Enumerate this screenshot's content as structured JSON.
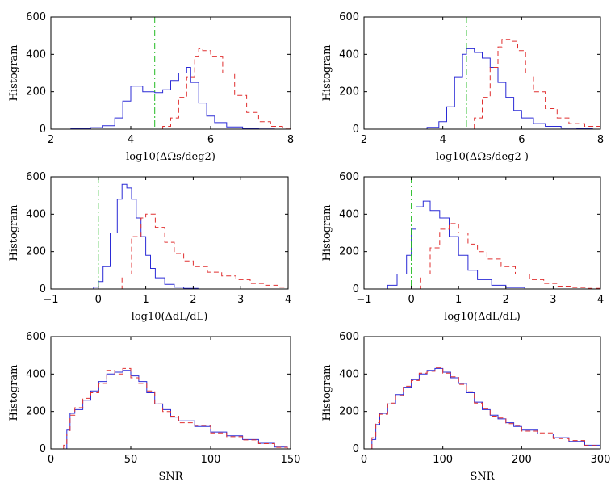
{
  "chart_data": [
    {
      "type": "histogram",
      "panel": "top-left",
      "xlabel": "log10(ΔΩs/deg2)",
      "ylabel": "Histogram",
      "xlim": [
        2,
        8
      ],
      "ylim": [
        0,
        600
      ],
      "xticks": [
        "2",
        "4",
        "6",
        "8"
      ],
      "yticks": [
        "0",
        "200",
        "400",
        "600"
      ],
      "vline": {
        "x": 4.6,
        "color": "#22bb22"
      },
      "series": [
        {
          "name": "solid",
          "color": "#2b2bd6",
          "style": "solid",
          "x": [
            2,
            2.5,
            3,
            3.3,
            3.6,
            3.8,
            4.0,
            4.3,
            4.6,
            4.8,
            5.0,
            5.2,
            5.4,
            5.5,
            5.7,
            5.9,
            6.1,
            6.4,
            6.8,
            7.2,
            7.6,
            8.0
          ],
          "y": [
            0,
            3,
            8,
            18,
            60,
            150,
            230,
            200,
            195,
            210,
            260,
            300,
            330,
            250,
            140,
            70,
            35,
            12,
            4,
            1,
            0,
            0
          ]
        },
        {
          "name": "dashed",
          "color": "#e03030",
          "style": "dashed",
          "x": [
            4.6,
            4.8,
            5.0,
            5.2,
            5.4,
            5.6,
            5.7,
            5.8,
            6.0,
            6.3,
            6.6,
            6.9,
            7.2,
            7.5,
            7.8,
            8.0
          ],
          "y": [
            0,
            15,
            60,
            170,
            280,
            390,
            430,
            420,
            390,
            300,
            180,
            90,
            40,
            15,
            5,
            2
          ]
        }
      ]
    },
    {
      "type": "histogram",
      "panel": "top-right",
      "xlabel": "log10(ΔΩs/deg2 )",
      "ylabel": "Histogram",
      "xlim": [
        2,
        8
      ],
      "ylim": [
        0,
        600
      ],
      "xticks": [
        "2",
        "4",
        "6",
        "8"
      ],
      "yticks": [
        "0",
        "200",
        "400",
        "600"
      ],
      "vline": {
        "x": 4.6,
        "color": "#22bb22"
      },
      "series": [
        {
          "name": "solid",
          "color": "#2b2bd6",
          "style": "solid",
          "x": [
            3.2,
            3.6,
            3.9,
            4.1,
            4.3,
            4.5,
            4.6,
            4.8,
            5.0,
            5.2,
            5.4,
            5.6,
            5.8,
            6.0,
            6.3,
            6.6,
            7.0,
            7.4,
            7.8
          ],
          "y": [
            0,
            10,
            40,
            120,
            280,
            400,
            430,
            410,
            380,
            330,
            250,
            170,
            100,
            60,
            30,
            15,
            5,
            2,
            0
          ]
        },
        {
          "name": "dashed",
          "color": "#e03030",
          "style": "dashed",
          "x": [
            4.6,
            4.8,
            5.0,
            5.2,
            5.4,
            5.5,
            5.7,
            5.9,
            6.1,
            6.3,
            6.6,
            6.9,
            7.2,
            7.6,
            8.0
          ],
          "y": [
            0,
            60,
            170,
            330,
            440,
            480,
            470,
            420,
            300,
            200,
            110,
            60,
            30,
            15,
            10
          ]
        }
      ]
    },
    {
      "type": "histogram",
      "panel": "middle-left",
      "xlabel": "log10(ΔdL/dL)",
      "ylabel": "Histogram",
      "xlim": [
        -1,
        4
      ],
      "ylim": [
        0,
        600
      ],
      "xticks": [
        "−1",
        "0",
        "1",
        "2",
        "3",
        "4"
      ],
      "yticks": [
        "0",
        "200",
        "400",
        "600"
      ],
      "vline": {
        "x": 0.0,
        "color": "#22bb22"
      },
      "series": [
        {
          "name": "solid",
          "color": "#2b2bd6",
          "style": "solid",
          "x": [
            -0.3,
            -0.1,
            0.0,
            0.1,
            0.25,
            0.4,
            0.5,
            0.6,
            0.7,
            0.8,
            0.9,
            1.0,
            1.1,
            1.2,
            1.4,
            1.6,
            1.8,
            2.1
          ],
          "y": [
            0,
            10,
            40,
            120,
            300,
            480,
            560,
            540,
            480,
            380,
            280,
            180,
            110,
            60,
            25,
            10,
            3,
            0
          ]
        },
        {
          "name": "dashed",
          "color": "#e03030",
          "style": "dashed",
          "x": [
            0.3,
            0.5,
            0.7,
            0.9,
            1.0,
            1.2,
            1.4,
            1.6,
            1.8,
            2.0,
            2.3,
            2.6,
            2.9,
            3.2,
            3.5,
            3.8,
            4.0
          ],
          "y": [
            0,
            80,
            280,
            380,
            400,
            330,
            250,
            190,
            150,
            120,
            90,
            70,
            50,
            30,
            20,
            10,
            5
          ]
        }
      ]
    },
    {
      "type": "histogram",
      "panel": "middle-right",
      "xlabel": "log10(ΔdL/dL)",
      "ylabel": "Histogram",
      "xlim": [
        -1,
        4
      ],
      "ylim": [
        0,
        600
      ],
      "xticks": [
        "−1",
        "0",
        "1",
        "2",
        "3",
        "4"
      ],
      "yticks": [
        "0",
        "200",
        "400",
        "600"
      ],
      "vline": {
        "x": 0.0,
        "color": "#22bb22"
      },
      "series": [
        {
          "name": "solid",
          "color": "#2b2bd6",
          "style": "solid",
          "x": [
            -0.7,
            -0.5,
            -0.3,
            -0.1,
            0.0,
            0.1,
            0.25,
            0.4,
            0.6,
            0.8,
            1.0,
            1.2,
            1.4,
            1.7,
            2.0,
            2.4
          ],
          "y": [
            0,
            20,
            80,
            180,
            320,
            440,
            470,
            420,
            380,
            280,
            180,
            100,
            50,
            20,
            8,
            0
          ]
        },
        {
          "name": "dashed",
          "color": "#e03030",
          "style": "dashed",
          "x": [
            0.0,
            0.2,
            0.4,
            0.6,
            0.8,
            1.0,
            1.2,
            1.4,
            1.6,
            1.9,
            2.2,
            2.5,
            2.8,
            3.1,
            3.4,
            3.7,
            4.0
          ],
          "y": [
            0,
            80,
            220,
            320,
            350,
            300,
            240,
            200,
            160,
            120,
            80,
            50,
            30,
            15,
            8,
            3,
            0
          ]
        }
      ]
    },
    {
      "type": "histogram",
      "panel": "bottom-left",
      "xlabel": "SNR",
      "ylabel": "Histogram",
      "xlim": [
        0,
        150
      ],
      "ylim": [
        0,
        600
      ],
      "xticks": [
        "0",
        "50",
        "100",
        "150"
      ],
      "yticks": [
        "0",
        "200",
        "400",
        "600"
      ],
      "series": [
        {
          "name": "solid",
          "color": "#2b2bd6",
          "style": "solid",
          "x": [
            8,
            10,
            12,
            15,
            20,
            25,
            30,
            35,
            40,
            45,
            50,
            55,
            60,
            65,
            70,
            75,
            80,
            90,
            100,
            110,
            120,
            130,
            140,
            148
          ],
          "y": [
            0,
            100,
            190,
            210,
            260,
            310,
            360,
            400,
            410,
            420,
            390,
            360,
            300,
            240,
            210,
            170,
            150,
            120,
            90,
            70,
            50,
            30,
            10,
            0
          ]
        },
        {
          "name": "dashed",
          "color": "#e03030",
          "style": "dashed",
          "x": [
            8,
            10,
            12,
            15,
            20,
            25,
            30,
            35,
            40,
            45,
            50,
            55,
            60,
            65,
            70,
            75,
            80,
            90,
            100,
            110,
            120,
            130,
            140,
            148
          ],
          "y": [
            20,
            80,
            180,
            220,
            270,
            300,
            350,
            420,
            400,
            430,
            380,
            350,
            310,
            240,
            200,
            175,
            140,
            125,
            85,
            65,
            48,
            28,
            8,
            0
          ]
        }
      ]
    },
    {
      "type": "histogram",
      "panel": "bottom-right",
      "xlabel": "SNR",
      "ylabel": "Histogram",
      "xlim": [
        0,
        300
      ],
      "ylim": [
        0,
        600
      ],
      "xticks": [
        "0",
        "100",
        "200",
        "300"
      ],
      "yticks": [
        "0",
        "200",
        "400",
        "600"
      ],
      "series": [
        {
          "name": "solid",
          "color": "#2b2bd6",
          "style": "solid",
          "x": [
            10,
            15,
            20,
            30,
            40,
            50,
            60,
            70,
            80,
            90,
            100,
            110,
            120,
            130,
            140,
            150,
            160,
            170,
            180,
            190,
            200,
            220,
            240,
            260,
            280,
            300
          ],
          "y": [
            50,
            130,
            190,
            240,
            290,
            330,
            370,
            400,
            420,
            430,
            410,
            380,
            350,
            300,
            250,
            210,
            180,
            160,
            140,
            120,
            100,
            80,
            60,
            40,
            20,
            10
          ]
        },
        {
          "name": "dashed",
          "color": "#e03030",
          "style": "dashed",
          "x": [
            10,
            15,
            20,
            30,
            40,
            50,
            60,
            70,
            80,
            90,
            100,
            110,
            120,
            130,
            140,
            150,
            160,
            170,
            180,
            190,
            200,
            220,
            240,
            260,
            280,
            300
          ],
          "y": [
            60,
            140,
            185,
            245,
            285,
            335,
            365,
            405,
            415,
            435,
            405,
            385,
            345,
            305,
            245,
            215,
            175,
            165,
            135,
            125,
            95,
            85,
            55,
            45,
            18,
            8
          ]
        }
      ]
    }
  ]
}
